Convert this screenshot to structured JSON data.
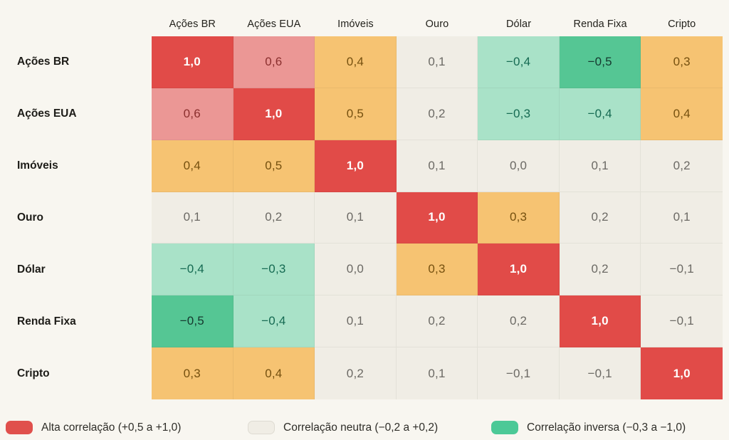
{
  "page": {
    "background": "#f8f6f0"
  },
  "chart_data": {
    "type": "heatmap",
    "title": "",
    "categories": [
      "Ações BR",
      "Ações EUA",
      "Imóveis",
      "Ouro",
      "Dólar",
      "Renda Fixa",
      "Cripto"
    ],
    "matrix": [
      [
        1.0,
        0.6,
        0.4,
        0.1,
        -0.4,
        -0.5,
        0.3
      ],
      [
        0.6,
        1.0,
        0.5,
        0.2,
        -0.3,
        -0.4,
        0.4
      ],
      [
        0.4,
        0.5,
        1.0,
        0.1,
        0.0,
        0.1,
        0.2
      ],
      [
        0.1,
        0.2,
        0.1,
        1.0,
        0.3,
        0.2,
        0.1
      ],
      [
        -0.4,
        -0.3,
        0.0,
        0.3,
        1.0,
        0.2,
        -0.1
      ],
      [
        -0.5,
        -0.4,
        0.1,
        0.2,
        0.2,
        1.0,
        -0.1
      ],
      [
        0.3,
        0.4,
        0.2,
        0.1,
        -0.1,
        -0.1,
        1.0
      ]
    ],
    "value_format": "comma-decimal",
    "layout": {
      "legend_position": "bottom",
      "grid": "subtle-dividers"
    },
    "palette": {
      "diagonal": {
        "bg": "#e14b48",
        "text": "#ffffff"
      },
      "high": {
        "bg": "#eb9795",
        "text": "#8a2f2e"
      },
      "moderate": {
        "bg": "#f6c372",
        "text": "#75500f"
      },
      "neutral": {
        "bg": "#f0ede5",
        "text": "#6b6964"
      },
      "inverse_light": {
        "bg": "#a9e2c8",
        "text": "#156a52"
      },
      "inverse_dark": {
        "bg": "#55c694",
        "text": "#15382e"
      }
    },
    "legend": [
      {
        "key": "high",
        "label": "Alta correlação (+0,5 a +1,0)",
        "color": "#e0504c",
        "bordered": false
      },
      {
        "key": "neutral",
        "label": "Correlação neutra (−0,2 a +0,2)",
        "color": "#f0ede5",
        "bordered": true
      },
      {
        "key": "inverse",
        "label": "Correlação inversa (−0,3 a −1,0)",
        "color": "#4cc997",
        "bordered": false
      }
    ],
    "legend_x_offsets": [
      8,
      348,
      690
    ]
  }
}
